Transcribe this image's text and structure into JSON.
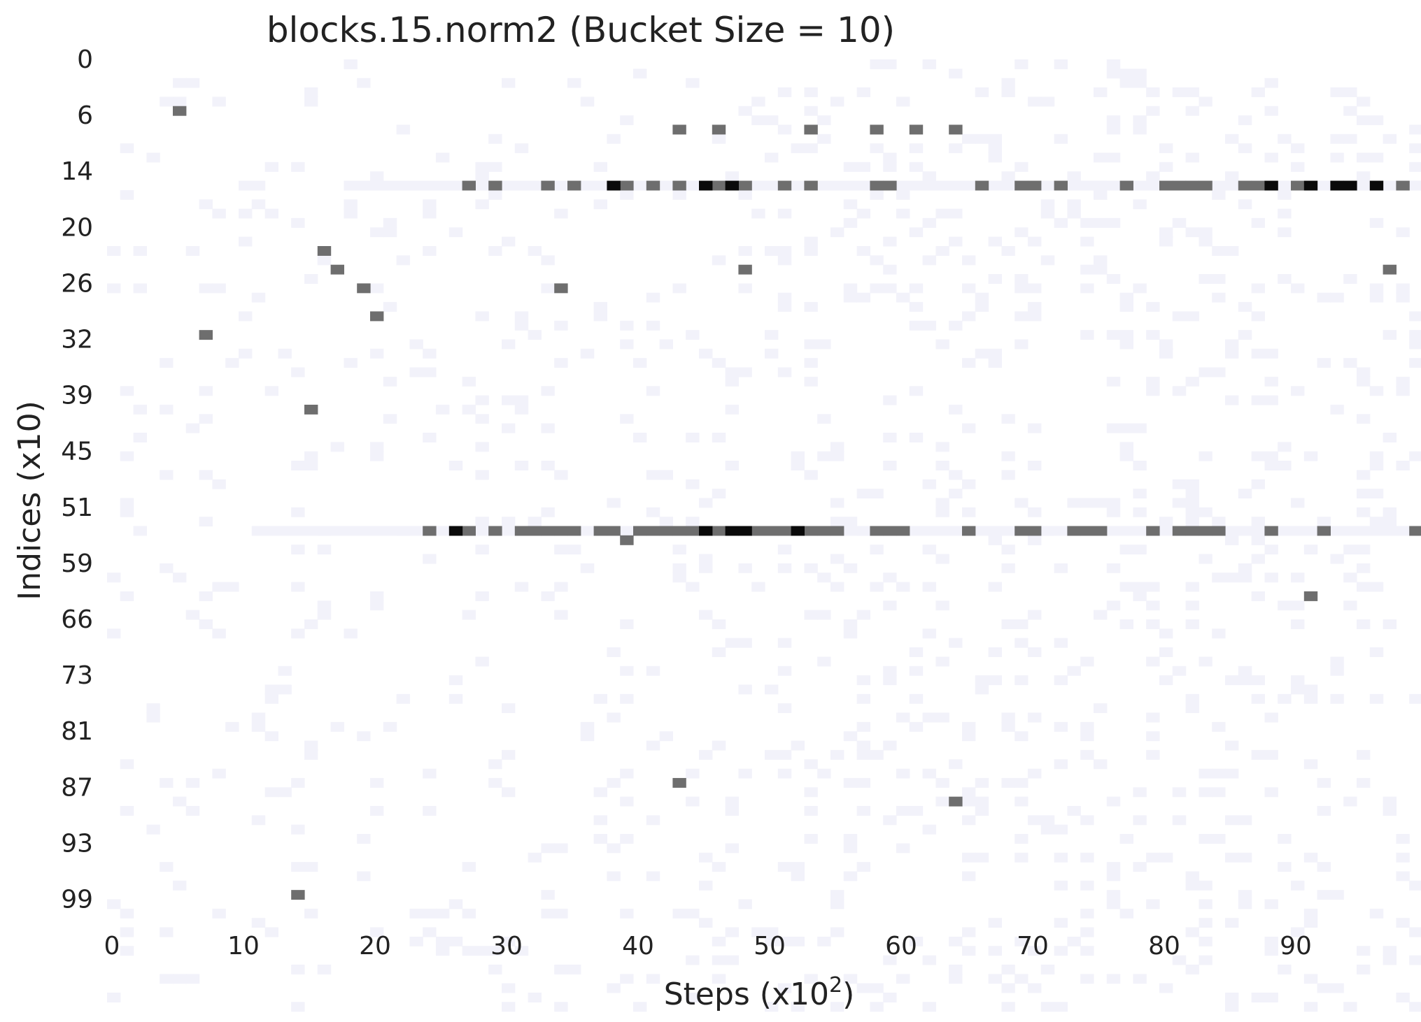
{
  "chart_data": {
    "type": "heatmap",
    "title": "blocks.15.norm2 (Bucket Size = 10)",
    "xlabel_base": "Steps (x10",
    "xlabel_sup": "2",
    "xlabel_close": ")",
    "ylabel": "Indices (x10)",
    "x_range": [
      0,
      99
    ],
    "y_range": [
      0,
      101
    ],
    "x_ticks": [
      "0",
      "10",
      "20",
      "30",
      "40",
      "50",
      "60",
      "70",
      "80",
      "90"
    ],
    "x_tick_values": [
      0,
      10,
      20,
      30,
      40,
      50,
      60,
      70,
      80,
      90
    ],
    "y_ticks": [
      "0",
      "6",
      "14",
      "20",
      "26",
      "32",
      "39",
      "45",
      "51",
      "59",
      "66",
      "73",
      "81",
      "87",
      "93",
      "99"
    ],
    "y_tick_rows": [
      0,
      6,
      12,
      18,
      24,
      30,
      36,
      42,
      48,
      54,
      60,
      66,
      72,
      78,
      84,
      90
    ],
    "colors": {
      "light": "#f2f2fa",
      "mid": "#6e6e6e",
      "dark": "#0a0a0a"
    },
    "rows": [
      {
        "row": 13,
        "mid": [
          27,
          29,
          33,
          35,
          39,
          41,
          43,
          46,
          48,
          51,
          53,
          58,
          59,
          66,
          69,
          70,
          72,
          77,
          80,
          81,
          82,
          83,
          86,
          87,
          90,
          98
        ],
        "dark": [
          38,
          45,
          47,
          88,
          91,
          93,
          94,
          96
        ],
        "light_from": 18,
        "light_to": 99
      },
      {
        "row": 50,
        "mid": [
          24,
          27,
          29,
          31,
          32,
          33,
          34,
          35,
          37,
          38,
          40,
          41,
          42,
          43,
          44,
          46,
          49,
          50,
          51,
          53,
          54,
          55,
          58,
          59,
          60,
          65,
          69,
          70,
          73,
          74,
          75,
          79,
          81,
          82,
          83,
          84,
          88,
          92,
          99
        ],
        "dark": [
          26,
          45,
          47,
          48,
          52
        ],
        "light_from": 11,
        "light_to": 99
      },
      {
        "row": 51,
        "mid": [
          39
        ]
      }
    ],
    "points": [
      {
        "x": 5,
        "y": 5
      },
      {
        "x": 43,
        "y": 7
      },
      {
        "x": 46,
        "y": 7
      },
      {
        "x": 53,
        "y": 7
      },
      {
        "x": 58,
        "y": 7
      },
      {
        "x": 61,
        "y": 7
      },
      {
        "x": 64,
        "y": 7
      },
      {
        "x": 16,
        "y": 20
      },
      {
        "x": 17,
        "y": 22
      },
      {
        "x": 48,
        "y": 22
      },
      {
        "x": 97,
        "y": 22
      },
      {
        "x": 19,
        "y": 24
      },
      {
        "x": 34,
        "y": 24
      },
      {
        "x": 20,
        "y": 27
      },
      {
        "x": 7,
        "y": 29
      },
      {
        "x": 15,
        "y": 37
      },
      {
        "x": 91,
        "y": 57
      },
      {
        "x": 43,
        "y": 77
      },
      {
        "x": 64,
        "y": 79
      },
      {
        "x": 14,
        "y": 89
      }
    ]
  }
}
